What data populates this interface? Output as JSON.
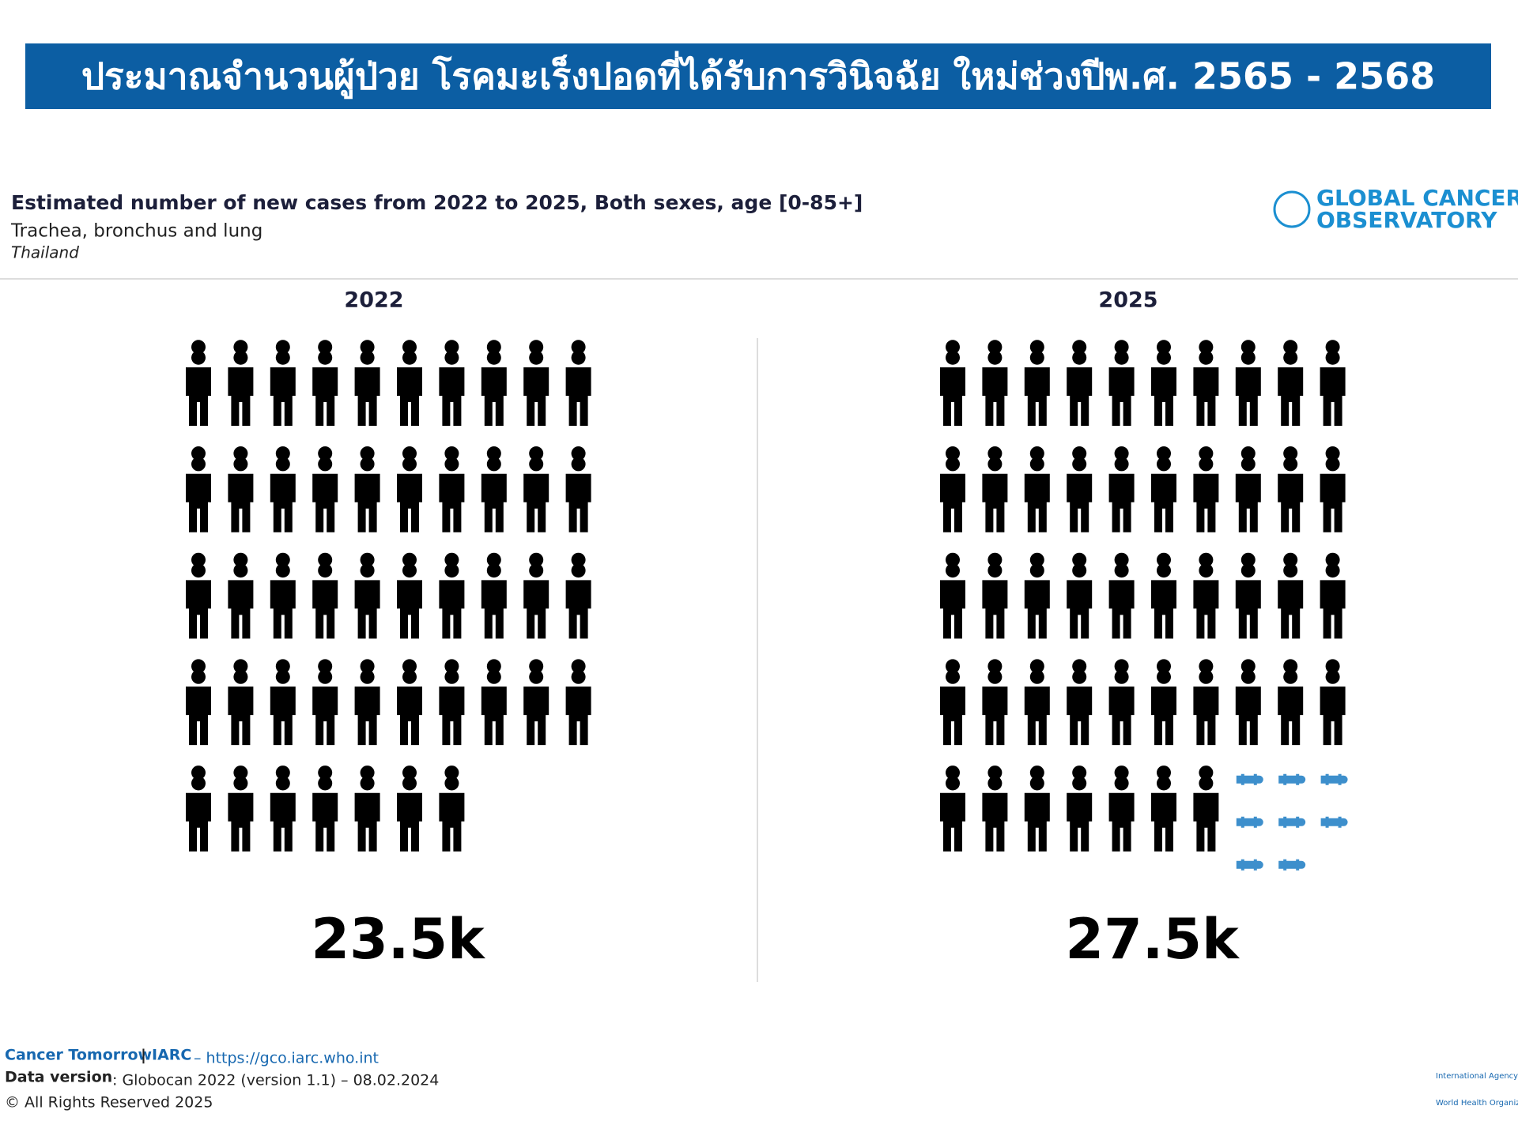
{
  "header": {
    "title": "ประมาณจำนวนผู้ป่วย โรคมะเร็งปอดที่ได้รับการวินิจฉัย ใหม่ช่วงปีพ.ศ. 2565 - 2568"
  },
  "chart_data": {
    "type": "pictogram",
    "title": "Estimated number of new cases from 2022 to 2025, Both sexes, age [0-85+]",
    "subtitle": "Trachea, bronchus and lung",
    "location": "Thailand",
    "categories": [
      "2022",
      "2025"
    ],
    "values": [
      23500,
      27500
    ],
    "value_labels": [
      "23.5k",
      "27.5k"
    ],
    "color": "#000000",
    "increase_color": "#3d8fcc"
  },
  "logo": {
    "line1": "GLOBAL CANCER",
    "line2": "OBSERVATORY"
  },
  "footer": {
    "product": "Cancer Tomorrow",
    "separator": "|",
    "org": "IARC",
    "url": "– https://gco.iarc.who.int",
    "data_version_label": "Data version",
    "data_version": ": Globocan 2022 (version 1.1) – 08.02.2024",
    "rights": "© All Rights Reserved 2025",
    "partner1": "International Agency for Research on Cancer",
    "partner2": "World Health Organization"
  }
}
